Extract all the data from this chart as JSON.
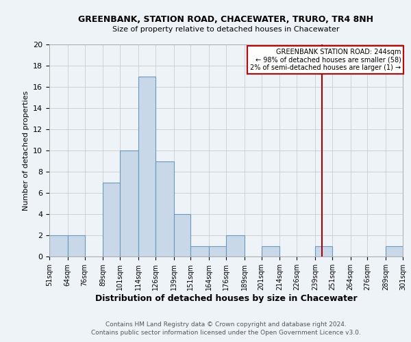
{
  "title": "GREENBANK, STATION ROAD, CHACEWATER, TRURO, TR4 8NH",
  "subtitle": "Size of property relative to detached houses in Chacewater",
  "xlabel": "Distribution of detached houses by size in Chacewater",
  "ylabel": "Number of detached properties",
  "footer_line1": "Contains HM Land Registry data © Crown copyright and database right 2024.",
  "footer_line2": "Contains public sector information licensed under the Open Government Licence v3.0.",
  "bin_edges": [
    51,
    64,
    76,
    89,
    101,
    114,
    126,
    139,
    151,
    164,
    176,
    189,
    201,
    214,
    226,
    239,
    251,
    264,
    276,
    289,
    301
  ],
  "bin_counts": [
    2,
    2,
    0,
    7,
    10,
    17,
    9,
    4,
    1,
    1,
    2,
    0,
    1,
    0,
    0,
    1,
    0,
    0,
    0,
    1
  ],
  "bar_color": "#c8d8e8",
  "bar_edge_color": "#6699bb",
  "bg_color": "#eef3f8",
  "grid_color": "#cccccc",
  "vline_x": 244,
  "vline_color": "#aa0000",
  "annotation_title": "GREENBANK STATION ROAD: 244sqm",
  "annotation_line1": "← 98% of detached houses are smaller (58)",
  "annotation_line2": "2% of semi-detached houses are larger (1) →",
  "annotation_box_color": "#ffffff",
  "annotation_border_color": "#cc0000",
  "ylim": [
    0,
    20
  ],
  "yticks": [
    0,
    2,
    4,
    6,
    8,
    10,
    12,
    14,
    16,
    18,
    20
  ],
  "tick_labels": [
    "51sqm",
    "64sqm",
    "76sqm",
    "89sqm",
    "101sqm",
    "114sqm",
    "126sqm",
    "139sqm",
    "151sqm",
    "164sqm",
    "176sqm",
    "189sqm",
    "201sqm",
    "214sqm",
    "226sqm",
    "239sqm",
    "251sqm",
    "264sqm",
    "276sqm",
    "289sqm",
    "301sqm"
  ],
  "title_fontsize": 9,
  "subtitle_fontsize": 8,
  "xlabel_fontsize": 9,
  "ylabel_fontsize": 8,
  "xtick_fontsize": 7,
  "ytick_fontsize": 8,
  "footer_fontsize": 6.5
}
